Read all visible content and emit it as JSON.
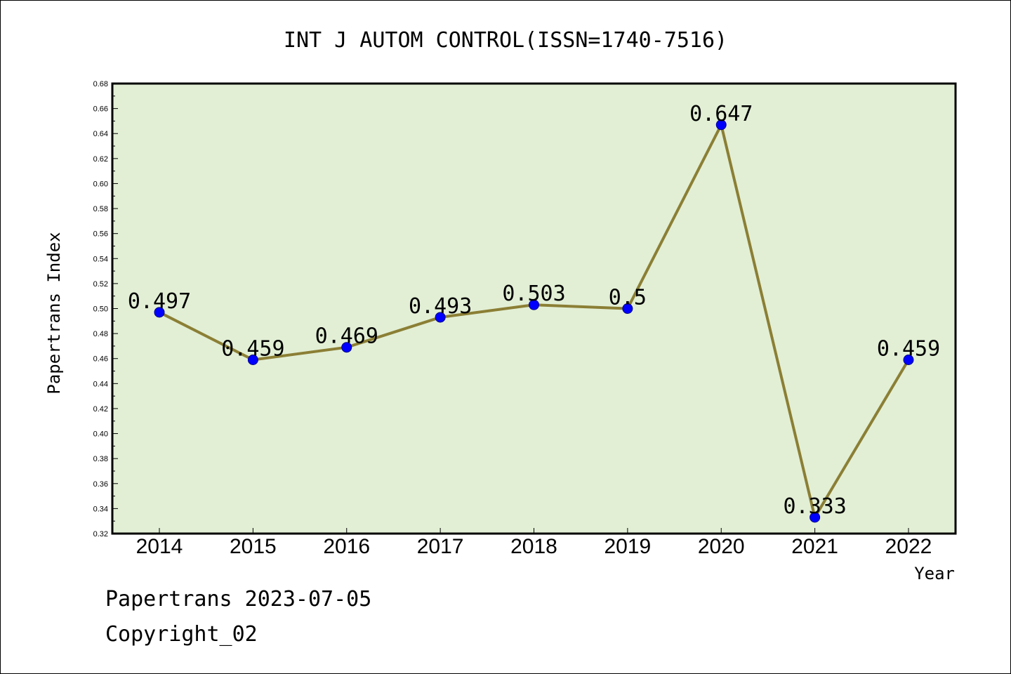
{
  "chart_data": {
    "type": "line",
    "title": "INT J AUTOM CONTROL(ISSN=1740-7516)",
    "xlabel": "Year",
    "ylabel": "Papertrans Index",
    "categories": [
      "2014",
      "2015",
      "2016",
      "2017",
      "2018",
      "2019",
      "2020",
      "2021",
      "2022"
    ],
    "values": [
      0.497,
      0.459,
      0.469,
      0.493,
      0.503,
      0.5,
      0.647,
      0.333,
      0.459
    ],
    "data_labels": [
      "0.497",
      "0.459",
      "0.469",
      "0.493",
      "0.503",
      "0.5",
      "0.647",
      "0.333",
      "0.459"
    ],
    "ylim": [
      0.32,
      0.68
    ],
    "yticks": [
      "0.32",
      "0.34",
      "0.36",
      "0.38",
      "0.40",
      "0.42",
      "0.44",
      "0.46",
      "0.48",
      "0.50",
      "0.52",
      "0.54",
      "0.56",
      "0.58",
      "0.60",
      "0.62",
      "0.64",
      "0.66",
      "0.68"
    ],
    "grid": false,
    "colors": {
      "plot_background": "#e2efd5",
      "line": "#8b7f35",
      "marker": "#0000ff"
    }
  },
  "footer": {
    "line1": "Papertrans 2023-07-05",
    "line2": "Copyright_02"
  }
}
